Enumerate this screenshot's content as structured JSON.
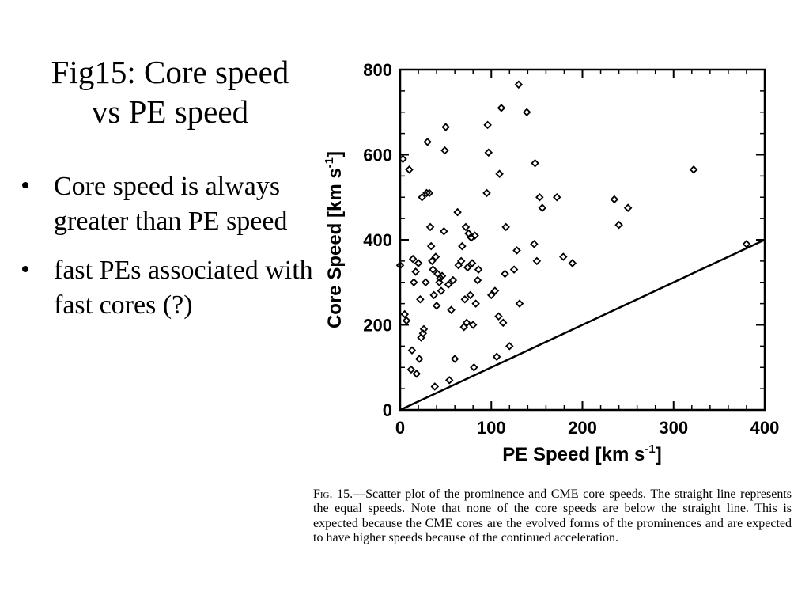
{
  "slide": {
    "title_line1": "Fig15: Core speed",
    "title_line2": "vs PE speed",
    "bullets": [
      "Core speed is always greater than PE speed",
      "fast PEs associated with fast cores (?)"
    ]
  },
  "caption": {
    "fig_label": "Fig. 15.",
    "text": "—Scatter plot of the prominence and CME core speeds. The straight line represents the equal speeds. Note that none of the core speeds are below the straight line. This is expected because the CME cores are the evolved forms of the prominences and are expected to have higher speeds because of the continued acceleration."
  },
  "chart_data": {
    "type": "scatter",
    "xlabel": "PE Speed [km s",
    "xlabel_sup": "-1",
    "xlabel_end": "]",
    "ylabel": "Core Speed [km s",
    "ylabel_sup": "-1",
    "ylabel_end": "]",
    "xlim": [
      0,
      400
    ],
    "ylim": [
      0,
      800
    ],
    "xticks": [
      0,
      100,
      200,
      300,
      400
    ],
    "yticks": [
      0,
      200,
      400,
      600,
      800
    ],
    "grid": false,
    "marker": "diamond",
    "reference_line": {
      "x": [
        0,
        400
      ],
      "y": [
        0,
        400
      ]
    },
    "points": [
      [
        0,
        340
      ],
      [
        3,
        590
      ],
      [
        5,
        225
      ],
      [
        7,
        210
      ],
      [
        10,
        565
      ],
      [
        12,
        95
      ],
      [
        13,
        140
      ],
      [
        14,
        355
      ],
      [
        15,
        300
      ],
      [
        17,
        325
      ],
      [
        18,
        85
      ],
      [
        20,
        345
      ],
      [
        21,
        120
      ],
      [
        22,
        260
      ],
      [
        23,
        170
      ],
      [
        24,
        500
      ],
      [
        25,
        180
      ],
      [
        26,
        190
      ],
      [
        28,
        300
      ],
      [
        29,
        510
      ],
      [
        30,
        630
      ],
      [
        32,
        510
      ],
      [
        33,
        430
      ],
      [
        34,
        385
      ],
      [
        35,
        350
      ],
      [
        36,
        330
      ],
      [
        37,
        270
      ],
      [
        38,
        55
      ],
      [
        39,
        360
      ],
      [
        40,
        245
      ],
      [
        41,
        320
      ],
      [
        43,
        300
      ],
      [
        44,
        310
      ],
      [
        45,
        280
      ],
      [
        46,
        315
      ],
      [
        48,
        420
      ],
      [
        49,
        610
      ],
      [
        50,
        665
      ],
      [
        53,
        295
      ],
      [
        54,
        70
      ],
      [
        56,
        235
      ],
      [
        58,
        305
      ],
      [
        60,
        120
      ],
      [
        63,
        465
      ],
      [
        64,
        340
      ],
      [
        67,
        350
      ],
      [
        68,
        385
      ],
      [
        70,
        195
      ],
      [
        71,
        260
      ],
      [
        72,
        430
      ],
      [
        73,
        205
      ],
      [
        74,
        335
      ],
      [
        75,
        415
      ],
      [
        77,
        270
      ],
      [
        78,
        405
      ],
      [
        79,
        345
      ],
      [
        80,
        200
      ],
      [
        81,
        100
      ],
      [
        82,
        410
      ],
      [
        83,
        250
      ],
      [
        85,
        305
      ],
      [
        86,
        330
      ],
      [
        95,
        510
      ],
      [
        96,
        670
      ],
      [
        97,
        605
      ],
      [
        100,
        270
      ],
      [
        104,
        280
      ],
      [
        106,
        125
      ],
      [
        108,
        220
      ],
      [
        109,
        555
      ],
      [
        111,
        710
      ],
      [
        113,
        205
      ],
      [
        115,
        320
      ],
      [
        116,
        430
      ],
      [
        120,
        150
      ],
      [
        125,
        330
      ],
      [
        128,
        375
      ],
      [
        130,
        765
      ],
      [
        131,
        250
      ],
      [
        139,
        700
      ],
      [
        147,
        390
      ],
      [
        148,
        580
      ],
      [
        150,
        350
      ],
      [
        153,
        500
      ],
      [
        156,
        475
      ],
      [
        172,
        500
      ],
      [
        179,
        360
      ],
      [
        189,
        345
      ],
      [
        235,
        495
      ],
      [
        240,
        435
      ],
      [
        250,
        475
      ],
      [
        322,
        565
      ],
      [
        380,
        390
      ]
    ]
  }
}
